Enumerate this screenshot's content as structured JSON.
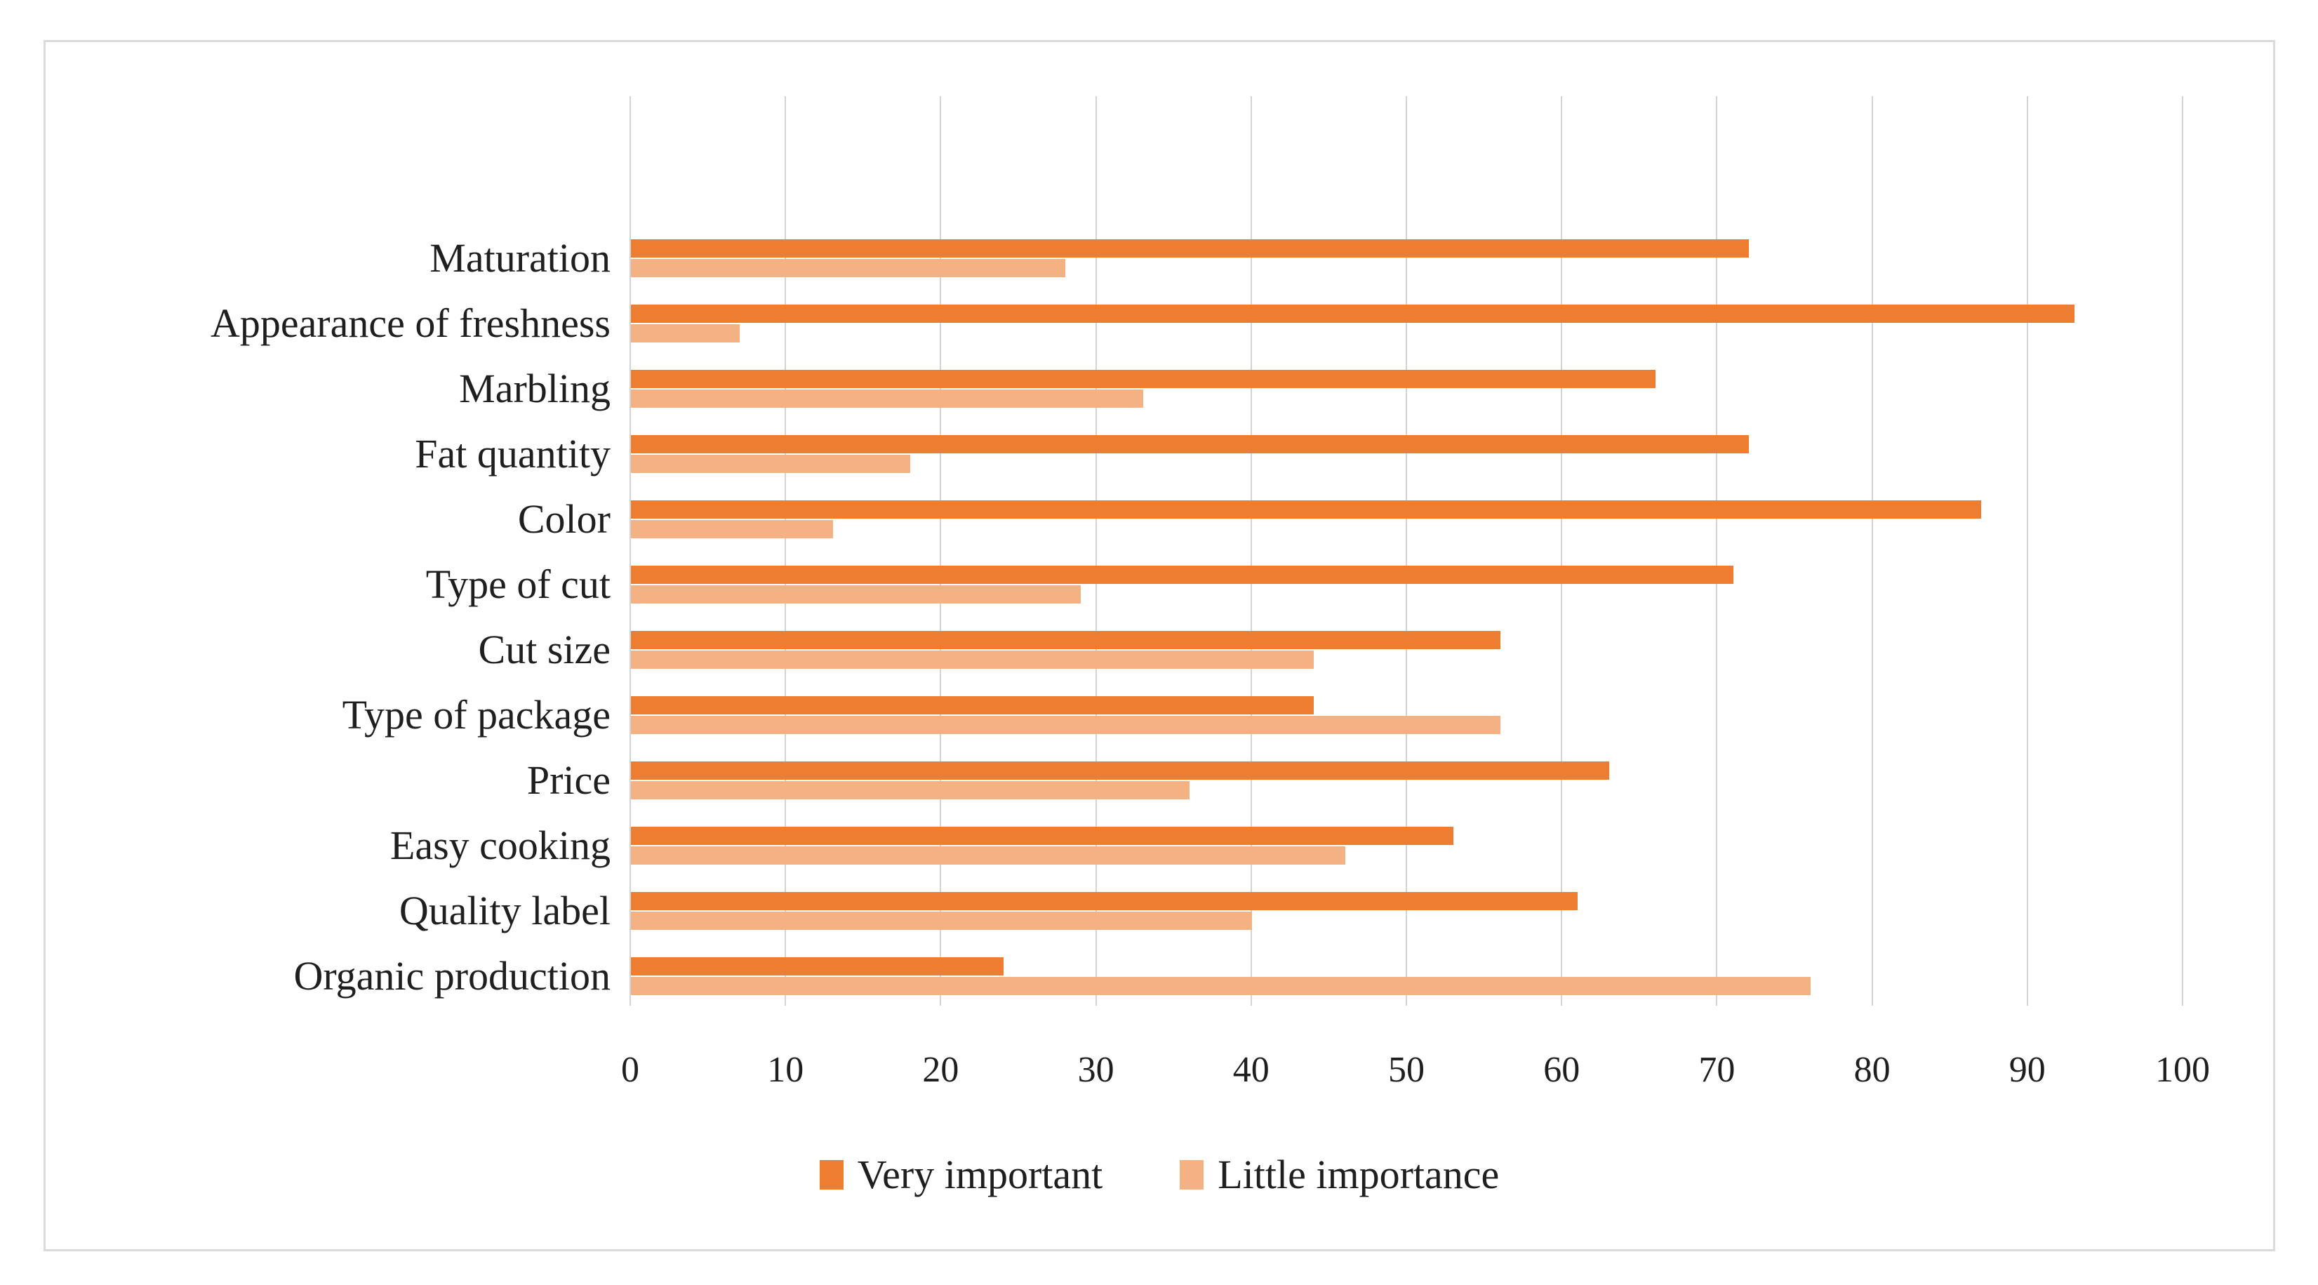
{
  "figure": {
    "background": "#ffffff",
    "border_color": "#dadada"
  },
  "chart_data": {
    "type": "bar",
    "orientation": "horizontal",
    "title": "",
    "categories": [
      "Maturation",
      "Appearance of freshness",
      "Marbling",
      "Fat quantity",
      "Color",
      "Type of cut",
      "Cut size",
      "Type of package",
      "Price",
      "Easy cooking",
      "Quality label",
      "Organic production"
    ],
    "series": [
      {
        "name": "Very important",
        "color": "#ED7D31",
        "values": [
          72,
          93,
          66,
          72,
          87,
          71,
          56,
          44,
          63,
          53,
          61,
          24
        ]
      },
      {
        "name": "Little importance",
        "color": "#F4B183",
        "values": [
          28,
          7,
          33,
          18,
          13,
          29,
          44,
          56,
          36,
          46,
          40,
          76
        ]
      }
    ],
    "xlim": [
      0,
      100
    ],
    "x_tick_step": 10,
    "x_tick_labels": [
      "0",
      "10",
      "20",
      "30",
      "40",
      "50",
      "60",
      "70",
      "80",
      "90",
      "100"
    ],
    "grid": "vertical",
    "gridline_color": "#d4d4d4",
    "text_color": "#1f1f1f",
    "legend_position": "bottom"
  }
}
